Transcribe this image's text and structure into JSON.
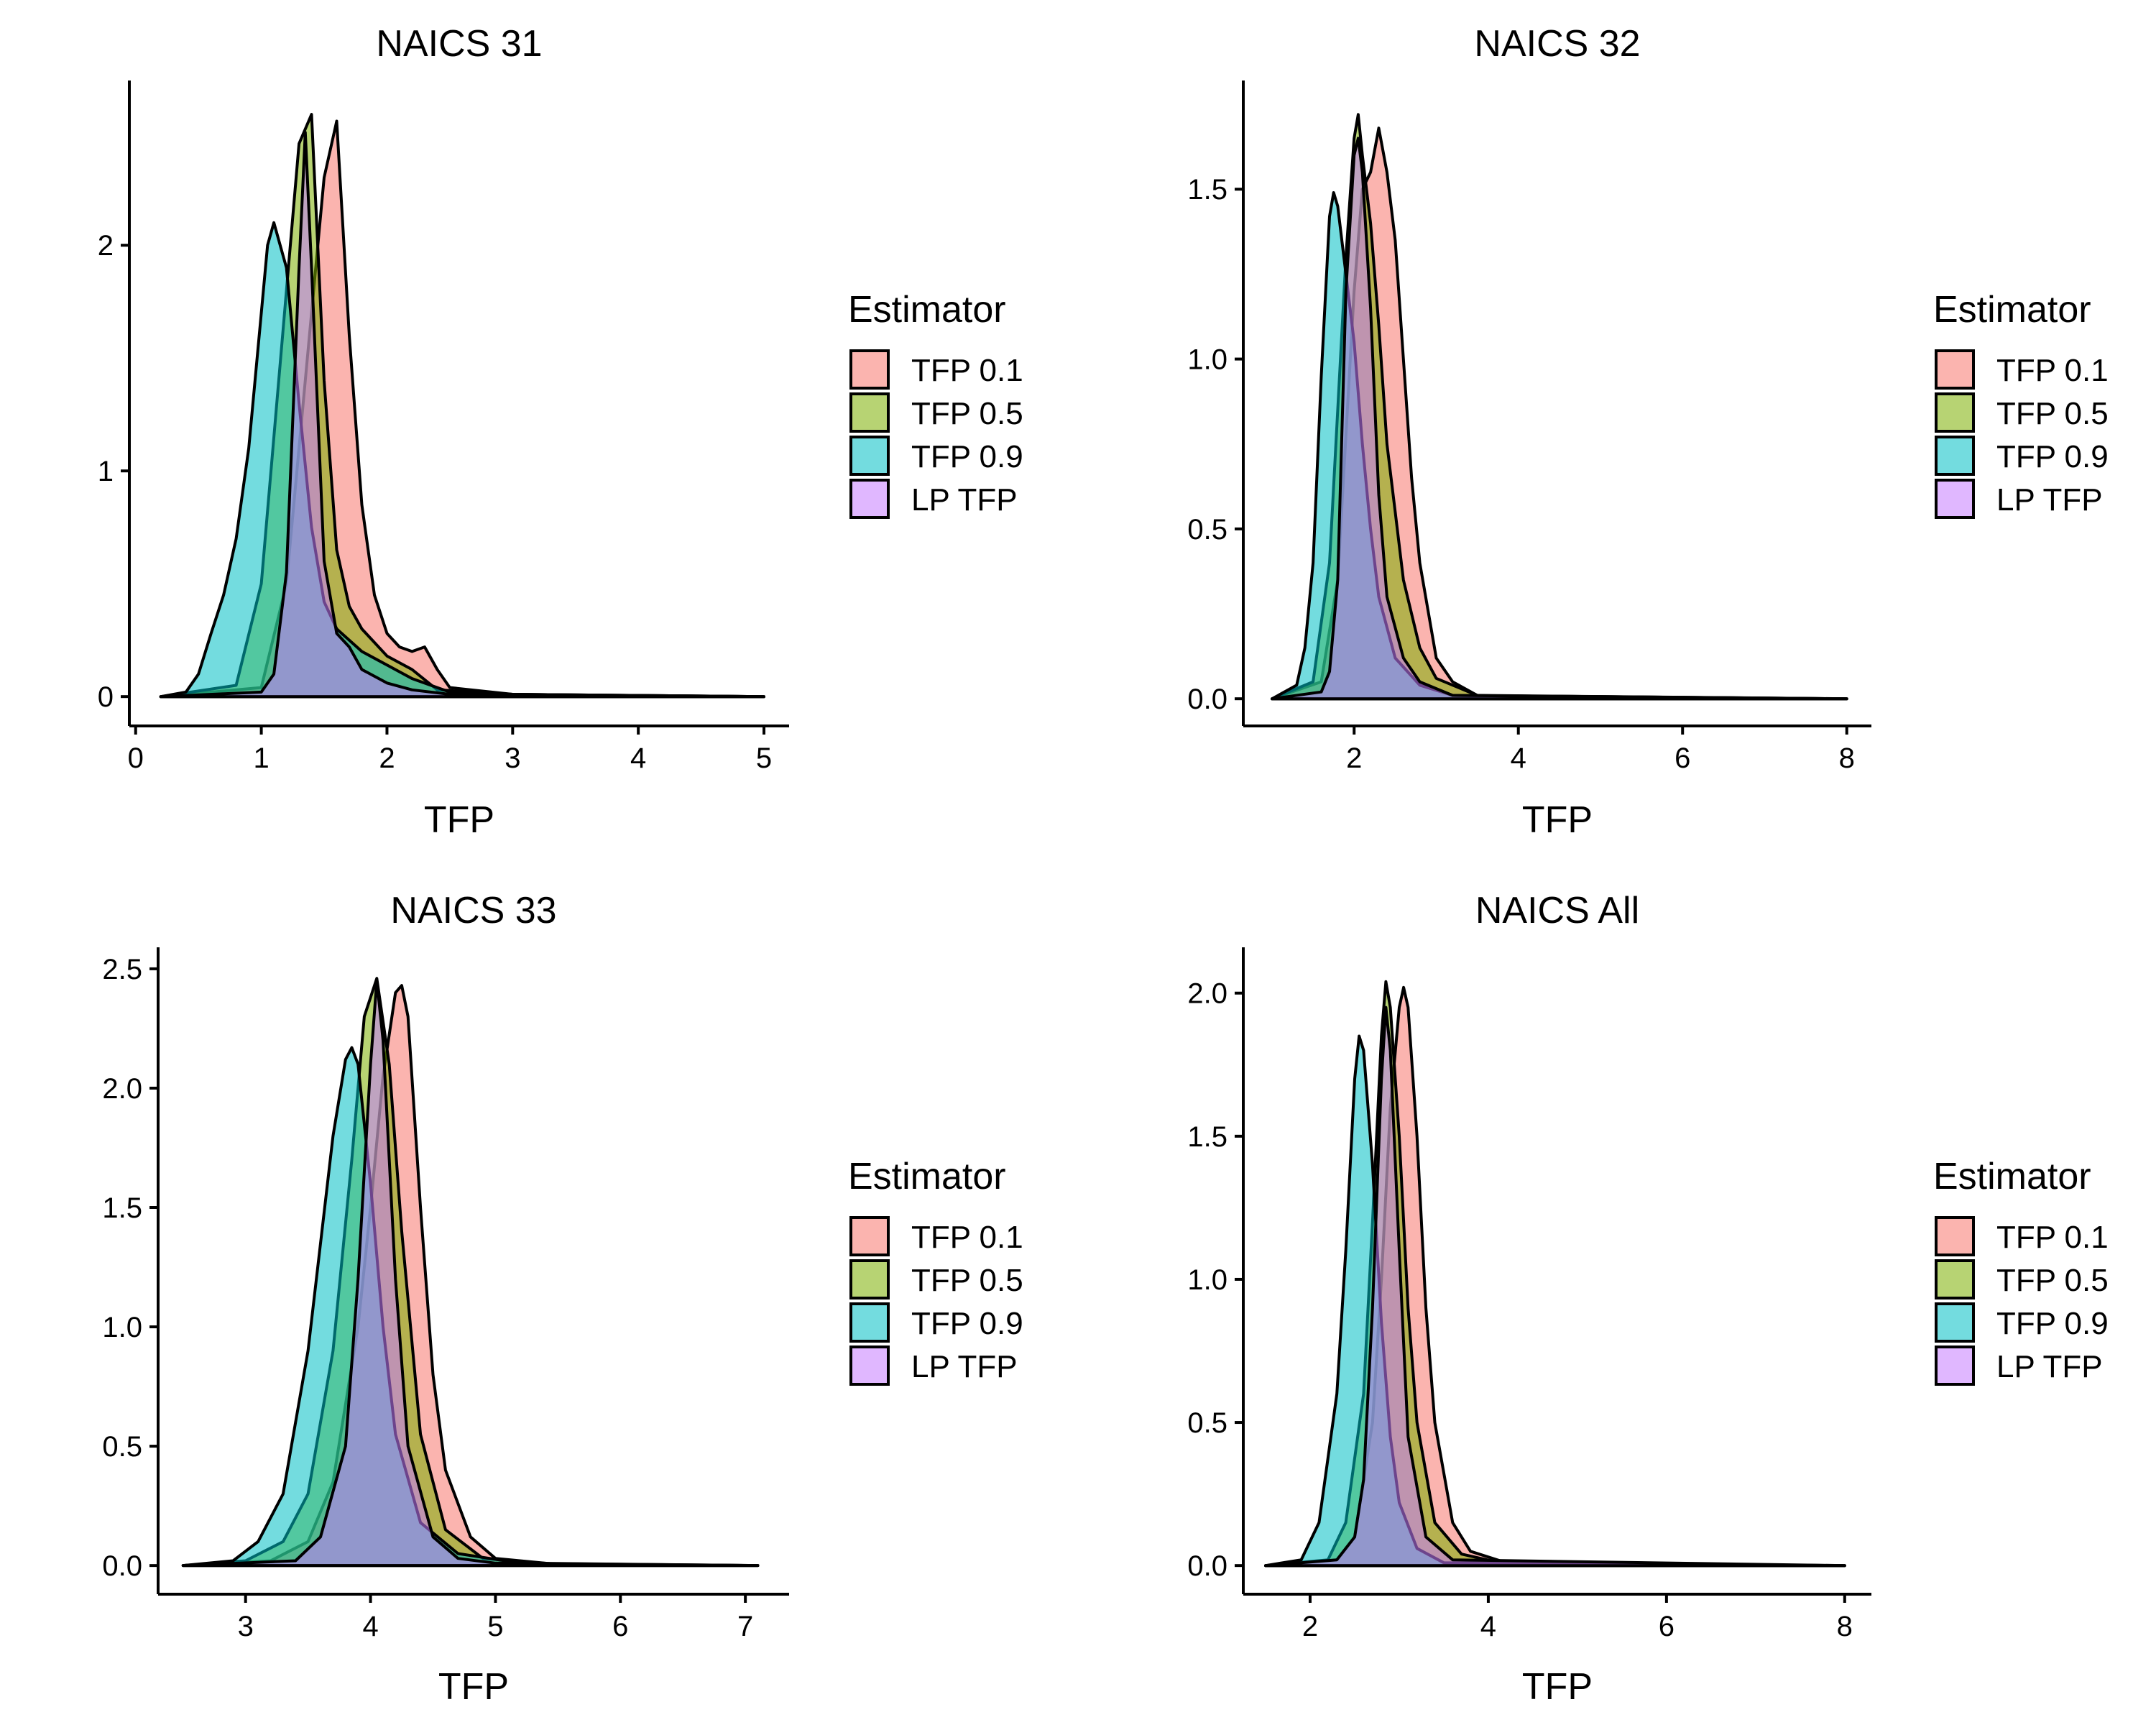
{
  "chart_data": [
    {
      "type": "area",
      "title": "NAICS 31",
      "xlabel": "TFP",
      "ylabel": "",
      "xlim": [
        -0.05,
        5.2
      ],
      "ylim": [
        -0.13,
        2.73
      ],
      "xticks": [
        0,
        1,
        2,
        3,
        4,
        5
      ],
      "yticks": [
        0,
        1,
        2
      ],
      "ytick_labels": [
        "0",
        "1",
        "2"
      ],
      "grid": false,
      "legend_title": "Estimator",
      "legend_position": "right",
      "series": [
        {
          "name": "TFP 0.1",
          "color": "#F8766D",
          "x": [
            0.2,
            1.0,
            1.2,
            1.4,
            1.5,
            1.6,
            1.7,
            1.8,
            1.9,
            2.0,
            2.1,
            2.2,
            2.3,
            2.4,
            2.5,
            3.0,
            5.0
          ],
          "y": [
            0,
            0.04,
            0.5,
            1.7,
            2.3,
            2.55,
            1.6,
            0.85,
            0.45,
            0.28,
            0.22,
            0.2,
            0.22,
            0.12,
            0.04,
            0.01,
            0
          ]
        },
        {
          "name": "TFP 0.5",
          "color": "#7CAE00",
          "x": [
            0.2,
            0.8,
            1.0,
            1.2,
            1.3,
            1.4,
            1.5,
            1.6,
            1.7,
            1.8,
            2.0,
            2.2,
            2.4,
            3.0,
            5.0
          ],
          "y": [
            0,
            0.05,
            0.5,
            1.8,
            2.45,
            2.58,
            1.4,
            0.65,
            0.4,
            0.3,
            0.18,
            0.12,
            0.03,
            0.01,
            0
          ]
        },
        {
          "name": "TFP 0.9",
          "color": "#00BFC4",
          "x": [
            0.2,
            0.4,
            0.5,
            0.6,
            0.7,
            0.8,
            0.9,
            1.0,
            1.05,
            1.1,
            1.2,
            1.3,
            1.4,
            1.5,
            1.6,
            1.8,
            2.0,
            2.2,
            2.5,
            3.0,
            5.0
          ],
          "y": [
            0,
            0.02,
            0.1,
            0.28,
            0.45,
            0.7,
            1.1,
            1.7,
            2.0,
            2.1,
            1.9,
            1.3,
            0.75,
            0.42,
            0.3,
            0.2,
            0.14,
            0.08,
            0.02,
            0.01,
            0
          ]
        },
        {
          "name": "LP TFP",
          "color": "#C77CFF",
          "x": [
            0.2,
            1.0,
            1.1,
            1.2,
            1.3,
            1.35,
            1.4,
            1.5,
            1.6,
            1.7,
            1.8,
            2.0,
            2.2,
            2.5,
            5.0
          ],
          "y": [
            0,
            0.02,
            0.1,
            0.55,
            1.9,
            2.5,
            1.9,
            0.6,
            0.28,
            0.22,
            0.12,
            0.06,
            0.03,
            0.01,
            0
          ]
        }
      ]
    },
    {
      "type": "area",
      "title": "NAICS 32",
      "xlabel": "TFP",
      "ylabel": "",
      "xlim": [
        0.65,
        8.3
      ],
      "ylim": [
        -0.08,
        1.82
      ],
      "xticks": [
        2,
        4,
        6,
        8
      ],
      "yticks": [
        0,
        0.5,
        1,
        1.5
      ],
      "ytick_labels": [
        "0.0",
        "0.5",
        "1.0",
        "1.5"
      ],
      "grid": false,
      "legend_title": "Estimator",
      "legend_position": "right",
      "series": [
        {
          "name": "TFP 0.1",
          "color": "#F8766D",
          "x": [
            1.0,
            1.6,
            1.8,
            2.0,
            2.1,
            2.2,
            2.3,
            2.4,
            2.5,
            2.6,
            2.7,
            2.8,
            3.0,
            3.2,
            3.5,
            4.0,
            8.0
          ],
          "y": [
            0,
            0.05,
            0.35,
            1.2,
            1.5,
            1.55,
            1.68,
            1.55,
            1.35,
            1.0,
            0.65,
            0.4,
            0.12,
            0.05,
            0.01,
            0.005,
            0
          ]
        },
        {
          "name": "TFP 0.5",
          "color": "#7CAE00",
          "x": [
            1.0,
            1.5,
            1.7,
            1.9,
            2.0,
            2.05,
            2.1,
            2.2,
            2.3,
            2.4,
            2.5,
            2.6,
            2.8,
            3.0,
            3.5,
            8.0
          ],
          "y": [
            0,
            0.05,
            0.4,
            1.3,
            1.65,
            1.72,
            1.6,
            1.4,
            1.1,
            0.75,
            0.55,
            0.35,
            0.15,
            0.06,
            0.01,
            0
          ]
        },
        {
          "name": "TFP 0.9",
          "color": "#00BFC4",
          "x": [
            1.0,
            1.3,
            1.4,
            1.5,
            1.6,
            1.7,
            1.75,
            1.8,
            1.9,
            2.0,
            2.1,
            2.2,
            2.3,
            2.5,
            2.8,
            3.2,
            8.0
          ],
          "y": [
            0,
            0.04,
            0.15,
            0.4,
            0.95,
            1.42,
            1.49,
            1.45,
            1.25,
            1.05,
            0.75,
            0.5,
            0.3,
            0.12,
            0.04,
            0.01,
            0
          ]
        },
        {
          "name": "LP TFP",
          "color": "#C77CFF",
          "x": [
            1.0,
            1.6,
            1.7,
            1.8,
            1.9,
            2.0,
            2.05,
            2.1,
            2.2,
            2.3,
            2.4,
            2.6,
            2.8,
            3.2,
            8.0
          ],
          "y": [
            0,
            0.02,
            0.08,
            0.35,
            1.2,
            1.6,
            1.65,
            1.55,
            1.15,
            0.6,
            0.3,
            0.12,
            0.05,
            0.01,
            0
          ]
        }
      ]
    },
    {
      "type": "area",
      "title": "NAICS 33",
      "xlabel": "TFP",
      "ylabel": "",
      "xlim": [
        2.3,
        7.35
      ],
      "ylim": [
        -0.12,
        2.59
      ],
      "xticks": [
        3,
        4,
        5,
        6,
        7
      ],
      "yticks": [
        0,
        0.5,
        1,
        1.5,
        2,
        2.5
      ],
      "ytick_labels": [
        "0.0",
        "0.5",
        "1.0",
        "1.5",
        "2.0",
        "2.5"
      ],
      "grid": false,
      "legend_title": "Estimator",
      "legend_position": "right",
      "series": [
        {
          "name": "TFP 0.1",
          "color": "#F8766D",
          "x": [
            2.5,
            3.2,
            3.5,
            3.7,
            3.9,
            4.0,
            4.1,
            4.2,
            4.25,
            4.3,
            4.4,
            4.5,
            4.6,
            4.8,
            5.0,
            5.5,
            7.1
          ],
          "y": [
            0,
            0.02,
            0.1,
            0.35,
            1.0,
            1.5,
            2.05,
            2.4,
            2.43,
            2.3,
            1.5,
            0.8,
            0.4,
            0.12,
            0.03,
            0.005,
            0
          ]
        },
        {
          "name": "TFP 0.5",
          "color": "#7CAE00",
          "x": [
            2.5,
            3.0,
            3.3,
            3.5,
            3.7,
            3.85,
            3.95,
            4.05,
            4.15,
            4.25,
            4.4,
            4.6,
            4.9,
            5.5,
            7.1
          ],
          "y": [
            0,
            0.02,
            0.1,
            0.3,
            0.9,
            1.7,
            2.3,
            2.46,
            2.1,
            1.4,
            0.55,
            0.15,
            0.03,
            0.005,
            0
          ]
        },
        {
          "name": "TFP 0.9",
          "color": "#00BFC4",
          "x": [
            2.5,
            2.9,
            3.1,
            3.3,
            3.5,
            3.6,
            3.7,
            3.8,
            3.85,
            3.9,
            4.0,
            4.1,
            4.2,
            4.4,
            4.7,
            5.2,
            7.1
          ],
          "y": [
            0,
            0.02,
            0.1,
            0.3,
            0.9,
            1.35,
            1.8,
            2.12,
            2.17,
            2.1,
            1.6,
            1.0,
            0.55,
            0.18,
            0.05,
            0.01,
            0
          ]
        },
        {
          "name": "LP TFP",
          "color": "#C77CFF",
          "x": [
            2.5,
            3.4,
            3.6,
            3.8,
            3.9,
            4.0,
            4.05,
            4.1,
            4.2,
            4.3,
            4.5,
            4.7,
            5.0,
            7.1
          ],
          "y": [
            0,
            0.02,
            0.12,
            0.5,
            1.2,
            2.1,
            2.45,
            2.2,
            1.2,
            0.5,
            0.12,
            0.03,
            0.01,
            0
          ]
        }
      ]
    },
    {
      "type": "area",
      "title": "NAICS All",
      "xlabel": "TFP",
      "ylabel": "",
      "xlim": [
        1.25,
        8.3
      ],
      "ylim": [
        -0.1,
        2.16
      ],
      "xticks": [
        2,
        4,
        6,
        8
      ],
      "yticks": [
        0,
        0.5,
        1,
        1.5,
        2
      ],
      "ytick_labels": [
        "0.0",
        "0.5",
        "1.0",
        "1.5",
        "2.0"
      ],
      "grid": false,
      "legend_title": "Estimator",
      "legend_position": "right",
      "series": [
        {
          "name": "TFP 0.1",
          "color": "#F8766D",
          "x": [
            1.5,
            2.3,
            2.5,
            2.7,
            2.8,
            2.9,
            3.0,
            3.05,
            3.1,
            3.2,
            3.3,
            3.4,
            3.6,
            3.8,
            4.2,
            8.0
          ],
          "y": [
            0,
            0.02,
            0.1,
            0.5,
            1.0,
            1.6,
            1.95,
            2.02,
            1.95,
            1.5,
            0.9,
            0.5,
            0.15,
            0.05,
            0.01,
            0
          ]
        },
        {
          "name": "TFP 0.5",
          "color": "#7CAE00",
          "x": [
            1.5,
            2.2,
            2.4,
            2.6,
            2.7,
            2.8,
            2.85,
            2.9,
            3.0,
            3.1,
            3.2,
            3.4,
            3.7,
            4.2,
            8.0
          ],
          "y": [
            0,
            0.02,
            0.15,
            0.6,
            1.2,
            1.85,
            2.04,
            1.95,
            1.5,
            0.9,
            0.5,
            0.15,
            0.04,
            0.005,
            0
          ]
        },
        {
          "name": "TFP 0.9",
          "color": "#00BFC4",
          "x": [
            1.5,
            1.9,
            2.1,
            2.3,
            2.4,
            2.5,
            2.55,
            2.6,
            2.7,
            2.8,
            2.9,
            3.0,
            3.2,
            3.5,
            8.0
          ],
          "y": [
            0,
            0.02,
            0.15,
            0.6,
            1.1,
            1.7,
            1.85,
            1.8,
            1.4,
            0.85,
            0.45,
            0.22,
            0.06,
            0.01,
            0
          ]
        },
        {
          "name": "LP TFP",
          "color": "#C77CFF",
          "x": [
            1.5,
            2.3,
            2.5,
            2.6,
            2.7,
            2.8,
            2.85,
            2.9,
            3.0,
            3.1,
            3.3,
            3.6,
            8.0
          ],
          "y": [
            0,
            0.02,
            0.1,
            0.3,
            0.9,
            1.7,
            1.95,
            1.8,
            1.1,
            0.45,
            0.1,
            0.02,
            0
          ]
        }
      ]
    }
  ]
}
